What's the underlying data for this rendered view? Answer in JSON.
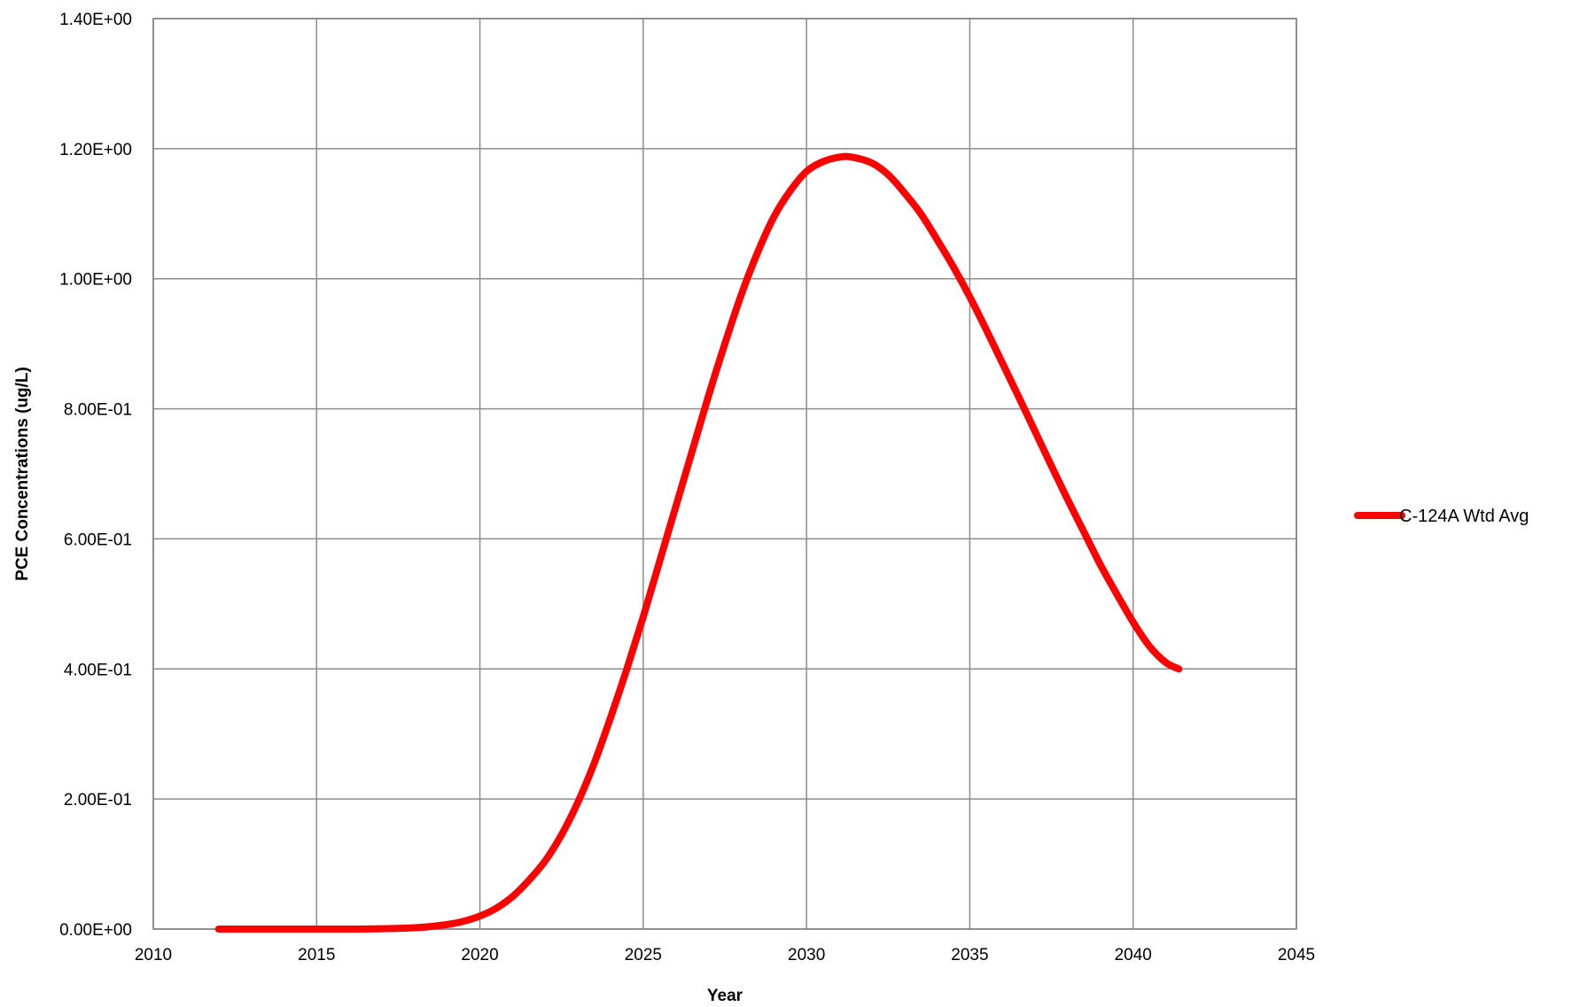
{
  "chart_data": {
    "type": "line",
    "title": "",
    "xlabel": "Year",
    "ylabel": "PCE Concentrations (ug/L)",
    "xlim": [
      2010,
      2045
    ],
    "ylim": [
      0,
      1.4
    ],
    "x_ticks": [
      2010,
      2015,
      2020,
      2025,
      2030,
      2035,
      2040,
      2045
    ],
    "x_tick_labels": [
      "2010",
      "2015",
      "2020",
      "2025",
      "2030",
      "2035",
      "2040",
      "2045"
    ],
    "y_ticks": [
      0,
      0.2,
      0.4,
      0.6,
      0.8,
      1.0,
      1.2,
      1.4
    ],
    "y_tick_labels": [
      "0.00E+00",
      "2.00E-01",
      "4.00E-01",
      "6.00E-01",
      "8.00E-01",
      "1.00E+00",
      "1.20E+00",
      "1.40E+00"
    ],
    "grid": true,
    "legend_position": "right",
    "series": [
      {
        "name": "C-124A Wtd Avg",
        "color": "#ff0000",
        "x": [
          2012.0,
          2014.0,
          2016.0,
          2017.0,
          2018.0,
          2018.5,
          2019.0,
          2019.5,
          2020.0,
          2020.5,
          2021.0,
          2021.5,
          2022.0,
          2022.5,
          2023.0,
          2023.5,
          2024.0,
          2024.5,
          2025.0,
          2025.5,
          2026.0,
          2026.5,
          2027.0,
          2027.5,
          2028.0,
          2028.5,
          2029.0,
          2029.5,
          2030.0,
          2030.5,
          2031.0,
          2031.4,
          2032.0,
          2032.5,
          2033.0,
          2033.5,
          2034.0,
          2034.5,
          2035.0,
          2035.5,
          2036.0,
          2036.5,
          2037.0,
          2037.5,
          2038.0,
          2038.5,
          2039.0,
          2039.5,
          2040.0,
          2040.5,
          2041.0,
          2041.4
        ],
        "y": [
          0.0,
          0.0,
          0.0,
          0.0005,
          0.002,
          0.004,
          0.007,
          0.012,
          0.02,
          0.032,
          0.05,
          0.075,
          0.105,
          0.145,
          0.195,
          0.255,
          0.325,
          0.4,
          0.48,
          0.565,
          0.65,
          0.735,
          0.82,
          0.9,
          0.975,
          1.04,
          1.095,
          1.135,
          1.165,
          1.18,
          1.187,
          1.187,
          1.178,
          1.16,
          1.132,
          1.1,
          1.06,
          1.018,
          0.972,
          0.922,
          0.87,
          0.818,
          0.765,
          0.712,
          0.66,
          0.61,
          0.56,
          0.515,
          0.472,
          0.435,
          0.41,
          0.4
        ]
      }
    ]
  }
}
